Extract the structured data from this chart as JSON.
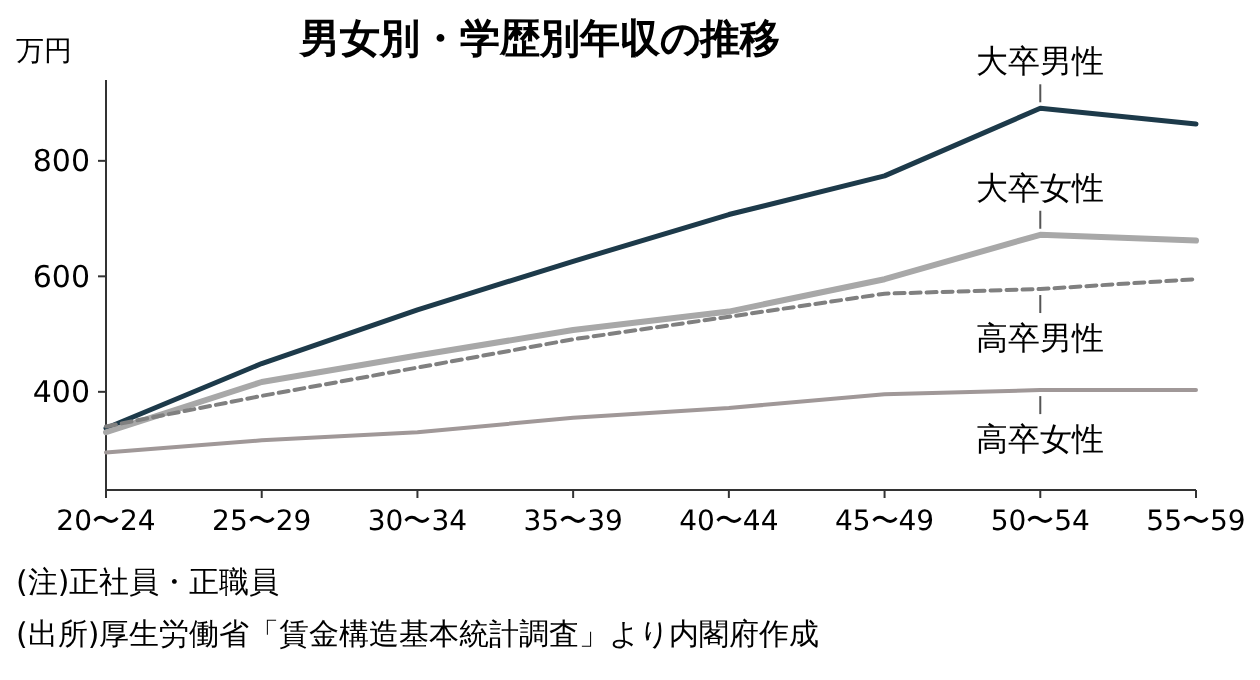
{
  "chart_data": {
    "type": "line",
    "title": "男女別・学歴別年収の推移",
    "ylabel": "万円",
    "categories": [
      "20〜24",
      "25〜29",
      "30〜34",
      "35〜39",
      "40〜44",
      "45〜49",
      "50〜54",
      "55〜59"
    ],
    "series": [
      {
        "name": "大卒男性",
        "color": "#1d3a4a",
        "values": [
          337,
          449,
          542,
          626,
          707,
          774,
          891,
          864
        ],
        "line_style": "solid"
      },
      {
        "name": "大卒女性",
        "color": "#a8a8a8",
        "values": [
          330,
          417,
          463,
          507,
          539,
          595,
          672,
          662
        ],
        "line_style": "solid"
      },
      {
        "name": "高卒男性",
        "color": "#808080",
        "values": [
          340,
          393,
          442,
          491,
          530,
          570,
          578,
          595
        ],
        "line_style": "dashed"
      },
      {
        "name": "高卒女性",
        "color": "#a09898",
        "values": [
          295,
          316,
          330,
          355,
          372,
          396,
          403,
          403
        ],
        "line_style": "solid"
      }
    ],
    "ylim": [
      230,
      940
    ],
    "yticks": [
      400,
      600,
      800
    ],
    "grid": false,
    "legend": false,
    "annotations": [
      "(注)正社員・正職員",
      "(出所)厚生労働省「賃金構造基本統計調査」より内閣府作成"
    ]
  }
}
